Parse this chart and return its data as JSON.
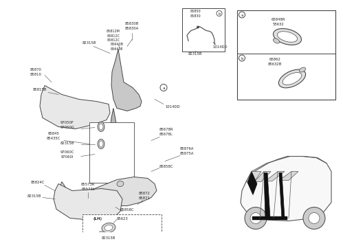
{
  "bg_color": "#ffffff",
  "line_color": "#444444",
  "text_color": "#222222",
  "labels": {
    "top_clip_85850": "85850\n85830",
    "top_clip_82315B": "82315B",
    "top_1014DD": "1014DD",
    "top_b_circle": "b",
    "top_85830B": "85830B\n85830A",
    "top_85812M": "85812M\n85812C\n85812C",
    "top_82315B": "82315B",
    "top_85643B": "85643B\n85643E",
    "left_85870": "85870\n85810",
    "left_85815B": "85815B",
    "left_85845": "85845\n85435C",
    "mid_97050F": "97050F\n97050G",
    "mid_82315B": "82315B",
    "mid_97060C": "97060C\n97060I",
    "mid_1014DD": "1014DD",
    "mid_85678R": "85678R\n85678L",
    "mid_85876A": "85876A\n85875A",
    "mid_85858C_1": "85858C",
    "bot_85824C": "85824C",
    "bot_82315B": "82315B",
    "bot_85573R": "85573R\n85573L",
    "bot_85872": "85872\n85871",
    "bot_85858C": "85858C",
    "lh_85623": "85623",
    "lh_82315B": "82315B",
    "lh_label": "(LH)",
    "inset_a": "a",
    "inset_b": "b",
    "inset_a_parts": "65848R\n55632",
    "inset_b_parts": "65862\n85632B",
    "a_circle": "a"
  }
}
